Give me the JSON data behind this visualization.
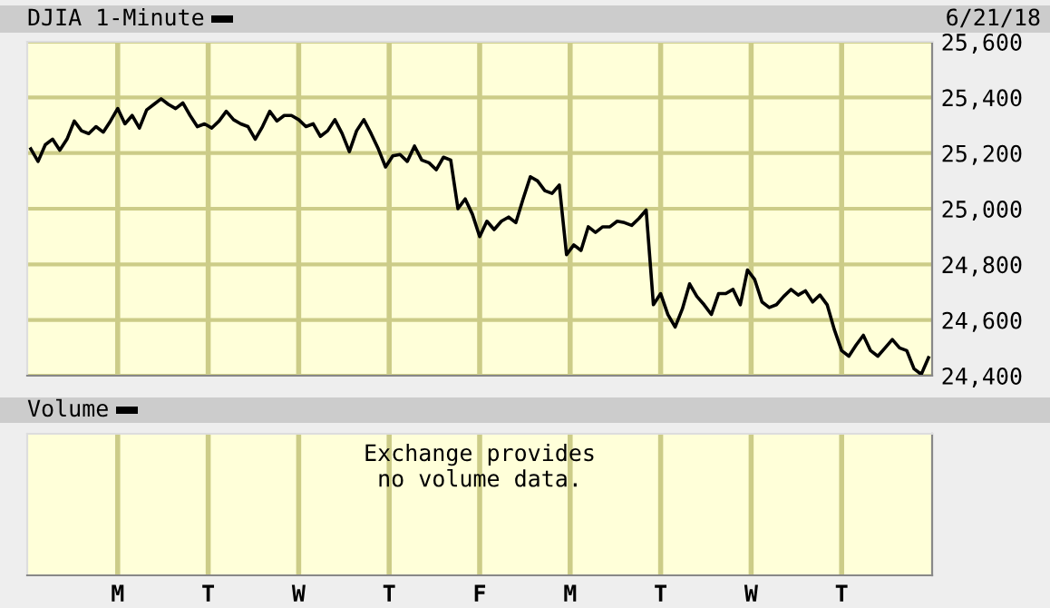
{
  "chart_data": [
    {
      "type": "line",
      "title": "DJIA 1-Minute",
      "subtitle": "6/21/18",
      "categories": [
        null,
        null,
        null,
        null,
        null,
        null,
        null,
        null,
        null,
        null,
        null,
        null,
        null,
        null,
        null,
        null,
        null,
        null,
        null,
        null,
        null,
        null,
        null,
        null,
        null,
        null,
        null,
        null,
        null,
        null,
        null,
        null,
        null,
        null,
        null,
        null,
        null,
        null,
        null,
        null,
        null,
        null,
        null,
        null,
        null,
        null,
        null,
        null,
        null,
        null,
        null,
        null,
        null,
        null,
        null,
        null,
        null,
        null,
        null,
        null,
        null,
        null,
        null,
        null,
        null,
        null,
        null,
        null,
        null,
        null,
        null,
        null,
        null,
        null,
        null,
        null,
        null,
        null,
        null,
        null,
        null,
        null,
        null,
        null,
        null,
        null,
        null,
        null,
        null,
        null,
        null,
        null,
        null,
        null,
        null,
        null,
        null,
        null,
        null,
        null,
        null,
        null,
        null,
        null,
        null,
        null,
        null,
        null,
        null,
        null,
        null,
        null,
        null,
        null,
        null,
        null,
        null,
        null,
        null,
        null,
        null,
        null,
        null,
        null,
        null
      ],
      "ylim": [
        24400,
        25600
      ],
      "yticks": [
        {
          "value": 24400,
          "label": "24,400"
        },
        {
          "value": 24600,
          "label": "24,600"
        },
        {
          "value": 24800,
          "label": "24,800"
        },
        {
          "value": 25000,
          "label": "25,000"
        },
        {
          "value": 25200,
          "label": "25,200"
        },
        {
          "value": 25400,
          "label": "25,400"
        },
        {
          "value": 25600,
          "label": "25,600"
        }
      ],
      "grid": true,
      "series": [
        {
          "color": "#000000",
          "values": [
            25215,
            25170,
            25230,
            25250,
            25210,
            25250,
            25315,
            25280,
            25270,
            25295,
            25275,
            25315,
            25360,
            25305,
            25335,
            25290,
            25355,
            25375,
            25395,
            25375,
            25360,
            25380,
            25335,
            25295,
            25305,
            25290,
            25315,
            25350,
            25320,
            25305,
            25295,
            25250,
            25295,
            25350,
            25315,
            25335,
            25335,
            25320,
            25295,
            25305,
            25260,
            25280,
            25320,
            25270,
            25205,
            25280,
            25320,
            25270,
            25215,
            25150,
            25190,
            25195,
            25170,
            25225,
            25175,
            25165,
            25140,
            25185,
            25175,
            25000,
            25035,
            24980,
            24900,
            24955,
            24925,
            24955,
            24970,
            24950,
            25035,
            25115,
            25100,
            25065,
            25055,
            25085,
            24835,
            24870,
            24850,
            24935,
            24915,
            24935,
            24935,
            24955,
            24950,
            24940,
            24965,
            24995,
            24655,
            24695,
            24620,
            24575,
            24640,
            24730,
            24685,
            24655,
            24620,
            24695,
            24695,
            24710,
            24655,
            24780,
            24745,
            24665,
            24645,
            24655,
            24685,
            24710,
            24690,
            24705,
            24665,
            24690,
            24655,
            24565,
            24490,
            24470,
            24510,
            24545,
            24490,
            24470,
            24500,
            24530,
            24500,
            24490,
            24425,
            24405,
            24465
          ]
        }
      ]
    },
    {
      "type": "other",
      "title": "Volume",
      "annotations": [
        "Exchange provides\nno volume data."
      ],
      "categories": [
        "M",
        "T",
        "W",
        "T",
        "F",
        "M",
        "T",
        "W",
        "T"
      ]
    }
  ]
}
